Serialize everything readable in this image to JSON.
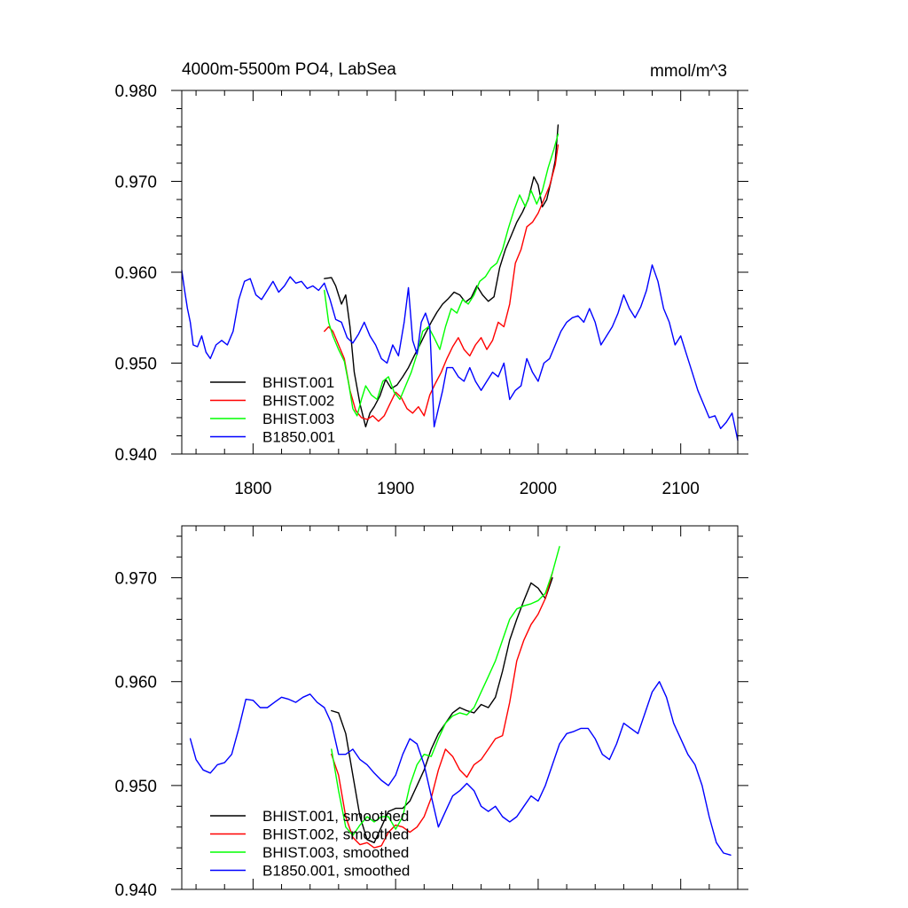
{
  "chart_data": [
    {
      "type": "line",
      "title": "4000m-5500m PO4, LabSea",
      "units": "mmol/m^3",
      "xlim": [
        1750,
        2140
      ],
      "ylim": [
        0.94,
        0.98
      ],
      "x_ticks": [
        1800,
        1900,
        2000,
        2100
      ],
      "x_tick_labels": [
        "1800",
        "1900",
        "2000",
        "2100"
      ],
      "y_ticks": [
        0.94,
        0.95,
        0.96,
        0.97,
        0.98
      ],
      "y_tick_labels": [
        "0.940",
        "0.950",
        "0.960",
        "0.970",
        "0.980"
      ],
      "legend_position": "bottom-left",
      "grid": false,
      "series": [
        {
          "name": "BHIST.001",
          "color": "#000000",
          "x": [
            1850,
            1855,
            1858,
            1862,
            1865,
            1868,
            1871,
            1875,
            1879,
            1882,
            1885,
            1889,
            1893,
            1897,
            1901,
            1905,
            1909,
            1913,
            1917,
            1921,
            1925,
            1929,
            1933,
            1937,
            1941,
            1945,
            1949,
            1953,
            1957,
            1961,
            1965,
            1969,
            1973,
            1977,
            1981,
            1985,
            1989,
            1993,
            1997,
            2000,
            2003,
            2006,
            2009,
            2012,
            2014
          ],
          "y": [
            0.9593,
            0.9594,
            0.9585,
            0.9565,
            0.9575,
            0.954,
            0.949,
            0.9455,
            0.943,
            0.9445,
            0.9452,
            0.9464,
            0.9482,
            0.9472,
            0.9476,
            0.9485,
            0.9495,
            0.9508,
            0.952,
            0.9533,
            0.9545,
            0.9556,
            0.9565,
            0.9571,
            0.9578,
            0.9575,
            0.9567,
            0.9572,
            0.9585,
            0.9575,
            0.9568,
            0.9573,
            0.9605,
            0.9625,
            0.964,
            0.9655,
            0.9666,
            0.968,
            0.9705,
            0.9696,
            0.9672,
            0.968,
            0.97,
            0.9723,
            0.9762
          ]
        },
        {
          "name": "BHIST.002",
          "color": "#ff0000",
          "x": [
            1850,
            1853,
            1856,
            1860,
            1864,
            1868,
            1872,
            1876,
            1880,
            1884,
            1888,
            1892,
            1896,
            1900,
            1904,
            1908,
            1912,
            1916,
            1920,
            1924,
            1928,
            1932,
            1936,
            1940,
            1944,
            1948,
            1952,
            1956,
            1960,
            1964,
            1968,
            1972,
            1976,
            1980,
            1984,
            1988,
            1992,
            1996,
            2000,
            2004,
            2008,
            2012,
            2014
          ],
          "y": [
            0.9535,
            0.954,
            0.9535,
            0.952,
            0.9505,
            0.947,
            0.9448,
            0.944,
            0.9438,
            0.9442,
            0.9436,
            0.9442,
            0.9455,
            0.9468,
            0.9462,
            0.945,
            0.9445,
            0.9452,
            0.9442,
            0.9465,
            0.9478,
            0.949,
            0.9505,
            0.9518,
            0.9528,
            0.9515,
            0.9508,
            0.952,
            0.9528,
            0.9515,
            0.9525,
            0.9545,
            0.954,
            0.9565,
            0.961,
            0.9625,
            0.965,
            0.9655,
            0.9665,
            0.968,
            0.9695,
            0.9718,
            0.974
          ]
        },
        {
          "name": "BHIST.003",
          "color": "#00ff00",
          "x": [
            1850,
            1853,
            1856,
            1860,
            1864,
            1867,
            1870,
            1873,
            1876,
            1879,
            1883,
            1887,
            1891,
            1895,
            1899,
            1903,
            1907,
            1911,
            1915,
            1919,
            1923,
            1927,
            1931,
            1935,
            1939,
            1943,
            1947,
            1951,
            1955,
            1959,
            1963,
            1967,
            1971,
            1975,
            1979,
            1983,
            1987,
            1991,
            1995,
            1999,
            2003,
            2007,
            2011,
            2014
          ],
          "y": [
            0.958,
            0.9545,
            0.953,
            0.9515,
            0.9502,
            0.9478,
            0.945,
            0.9442,
            0.946,
            0.9475,
            0.9465,
            0.946,
            0.948,
            0.9485,
            0.9468,
            0.946,
            0.9475,
            0.949,
            0.951,
            0.9535,
            0.954,
            0.9528,
            0.9515,
            0.954,
            0.956,
            0.9555,
            0.957,
            0.9565,
            0.9575,
            0.959,
            0.9595,
            0.9605,
            0.961,
            0.9625,
            0.9648,
            0.9668,
            0.9685,
            0.9672,
            0.969,
            0.9675,
            0.969,
            0.9715,
            0.9735,
            0.9752
          ]
        },
        {
          "name": "B1850.001",
          "color": "#0000ff",
          "x": [
            1750,
            1752,
            1754,
            1756,
            1758,
            1761,
            1764,
            1767,
            1770,
            1774,
            1778,
            1782,
            1786,
            1790,
            1794,
            1798,
            1802,
            1806,
            1810,
            1814,
            1818,
            1822,
            1826,
            1830,
            1834,
            1838,
            1842,
            1846,
            1850,
            1854,
            1858,
            1862,
            1866,
            1870,
            1874,
            1878,
            1882,
            1886,
            1890,
            1894,
            1898,
            1902,
            1906,
            1909,
            1912,
            1915,
            1918,
            1921,
            1924,
            1927,
            1930,
            1933,
            1936,
            1940,
            1944,
            1948,
            1952,
            1956,
            1960,
            1964,
            1968,
            1972,
            1976,
            1980,
            1984,
            1988,
            1992,
            1996,
            2000,
            2004,
            2008,
            2012,
            2016,
            2020,
            2024,
            2028,
            2032,
            2036,
            2040,
            2044,
            2048,
            2052,
            2056,
            2060,
            2064,
            2068,
            2072,
            2076,
            2080,
            2084,
            2088,
            2092,
            2096,
            2100,
            2104,
            2108,
            2112,
            2116,
            2120,
            2124,
            2128,
            2132,
            2136,
            2140
          ],
          "y": [
            0.9602,
            0.958,
            0.956,
            0.9545,
            0.952,
            0.9518,
            0.953,
            0.9512,
            0.9505,
            0.952,
            0.9525,
            0.952,
            0.9535,
            0.957,
            0.959,
            0.9593,
            0.9575,
            0.957,
            0.958,
            0.959,
            0.9578,
            0.9585,
            0.9595,
            0.9588,
            0.959,
            0.9582,
            0.9585,
            0.958,
            0.9588,
            0.957,
            0.9548,
            0.9545,
            0.9528,
            0.9522,
            0.9532,
            0.9545,
            0.953,
            0.952,
            0.9505,
            0.95,
            0.952,
            0.9508,
            0.9545,
            0.9583,
            0.9525,
            0.951,
            0.9545,
            0.9555,
            0.954,
            0.943,
            0.945,
            0.947,
            0.9495,
            0.9495,
            0.9485,
            0.948,
            0.9495,
            0.948,
            0.947,
            0.948,
            0.949,
            0.9485,
            0.95,
            0.946,
            0.947,
            0.9475,
            0.9505,
            0.949,
            0.948,
            0.95,
            0.9505,
            0.952,
            0.9535,
            0.9545,
            0.955,
            0.9552,
            0.9545,
            0.956,
            0.9545,
            0.952,
            0.953,
            0.954,
            0.9555,
            0.9575,
            0.956,
            0.955,
            0.9562,
            0.958,
            0.9608,
            0.959,
            0.956,
            0.9545,
            0.952,
            0.953,
            0.951,
            0.949,
            0.947,
            0.9455,
            0.944,
            0.9442,
            0.9428,
            0.9435,
            0.9445,
            0.9415
          ]
        }
      ],
      "legend": [
        "BHIST.001",
        "BHIST.002",
        "BHIST.003",
        "B1850.001"
      ]
    },
    {
      "type": "line",
      "title": "",
      "xlim": [
        1750,
        2140
      ],
      "ylim": [
        0.94,
        0.975
      ],
      "x_ticks": [
        1800,
        1900,
        2000,
        2100
      ],
      "x_tick_labels": [],
      "y_ticks": [
        0.94,
        0.95,
        0.96,
        0.97
      ],
      "y_tick_labels": [
        "0.940",
        "0.950",
        "0.960",
        "0.970"
      ],
      "legend_position": "bottom-left",
      "grid": false,
      "series": [
        {
          "name": "BHIST.001, smoothed",
          "color": "#000000",
          "x": [
            1855,
            1860,
            1865,
            1870,
            1875,
            1880,
            1885,
            1890,
            1895,
            1900,
            1905,
            1910,
            1915,
            1920,
            1925,
            1930,
            1935,
            1940,
            1945,
            1950,
            1955,
            1960,
            1965,
            1970,
            1975,
            1980,
            1985,
            1990,
            1995,
            2000,
            2005,
            2010
          ],
          "y": [
            0.9572,
            0.957,
            0.955,
            0.951,
            0.947,
            0.9448,
            0.9445,
            0.946,
            0.9475,
            0.9478,
            0.9478,
            0.9485,
            0.95,
            0.9515,
            0.9535,
            0.955,
            0.956,
            0.957,
            0.9575,
            0.9572,
            0.957,
            0.9578,
            0.9575,
            0.9585,
            0.961,
            0.964,
            0.966,
            0.9678,
            0.9695,
            0.969,
            0.968,
            0.97
          ]
        },
        {
          "name": "BHIST.002, smoothed",
          "color": "#ff0000",
          "x": [
            1855,
            1860,
            1865,
            1870,
            1875,
            1880,
            1885,
            1890,
            1895,
            1900,
            1905,
            1910,
            1915,
            1920,
            1925,
            1930,
            1935,
            1940,
            1945,
            1950,
            1955,
            1960,
            1965,
            1970,
            1975,
            1980,
            1985,
            1990,
            1995,
            2000,
            2005,
            2010
          ],
          "y": [
            0.953,
            0.951,
            0.947,
            0.945,
            0.9443,
            0.9445,
            0.944,
            0.9442,
            0.9455,
            0.9462,
            0.946,
            0.9455,
            0.946,
            0.947,
            0.9488,
            0.9515,
            0.9535,
            0.9528,
            0.9515,
            0.9508,
            0.952,
            0.9525,
            0.9535,
            0.9545,
            0.9548,
            0.958,
            0.962,
            0.964,
            0.9655,
            0.9665,
            0.968,
            0.9705
          ]
        },
        {
          "name": "BHIST.003, smoothed",
          "color": "#00ff00",
          "x": [
            1855,
            1860,
            1865,
            1870,
            1875,
            1880,
            1885,
            1890,
            1895,
            1900,
            1905,
            1910,
            1915,
            1920,
            1925,
            1930,
            1935,
            1940,
            1945,
            1950,
            1955,
            1960,
            1965,
            1970,
            1975,
            1980,
            1985,
            1990,
            1995,
            2000,
            2005,
            2010,
            2015
          ],
          "y": [
            0.9535,
            0.9495,
            0.946,
            0.9452,
            0.9462,
            0.947,
            0.9465,
            0.947,
            0.947,
            0.9458,
            0.947,
            0.95,
            0.952,
            0.953,
            0.9528,
            0.9545,
            0.956,
            0.9567,
            0.957,
            0.9568,
            0.9575,
            0.959,
            0.9605,
            0.962,
            0.964,
            0.966,
            0.967,
            0.9673,
            0.9675,
            0.9678,
            0.9685,
            0.9705,
            0.973
          ]
        },
        {
          "name": "B1850.001, smoothed",
          "color": "#0000ff",
          "x": [
            1756,
            1760,
            1765,
            1770,
            1775,
            1780,
            1785,
            1790,
            1795,
            1800,
            1805,
            1810,
            1815,
            1820,
            1825,
            1830,
            1835,
            1840,
            1845,
            1850,
            1855,
            1860,
            1865,
            1870,
            1875,
            1880,
            1885,
            1890,
            1895,
            1900,
            1905,
            1910,
            1915,
            1920,
            1925,
            1930,
            1935,
            1940,
            1945,
            1950,
            1955,
            1960,
            1965,
            1970,
            1975,
            1980,
            1985,
            1990,
            1995,
            2000,
            2005,
            2010,
            2015,
            2020,
            2025,
            2030,
            2035,
            2040,
            2045,
            2050,
            2055,
            2060,
            2065,
            2070,
            2075,
            2080,
            2085,
            2090,
            2095,
            2100,
            2105,
            2110,
            2115,
            2120,
            2125,
            2130,
            2135
          ],
          "y": [
            0.9545,
            0.9525,
            0.9515,
            0.9512,
            0.952,
            0.9522,
            0.953,
            0.9555,
            0.9583,
            0.9582,
            0.9575,
            0.9575,
            0.958,
            0.9585,
            0.9583,
            0.958,
            0.9585,
            0.9588,
            0.958,
            0.9575,
            0.956,
            0.953,
            0.953,
            0.9535,
            0.9525,
            0.952,
            0.9512,
            0.9505,
            0.95,
            0.951,
            0.953,
            0.9545,
            0.954,
            0.952,
            0.949,
            0.946,
            0.9475,
            0.949,
            0.9495,
            0.9502,
            0.9495,
            0.948,
            0.9475,
            0.948,
            0.947,
            0.9465,
            0.947,
            0.948,
            0.949,
            0.9485,
            0.95,
            0.952,
            0.954,
            0.955,
            0.9552,
            0.9555,
            0.9555,
            0.9545,
            0.953,
            0.9525,
            0.954,
            0.956,
            0.9555,
            0.955,
            0.957,
            0.959,
            0.96,
            0.9585,
            0.956,
            0.9545,
            0.953,
            0.952,
            0.95,
            0.947,
            0.9445,
            0.9435,
            0.9433
          ]
        }
      ],
      "legend": [
        "BHIST.001, smoothed",
        "BHIST.002, smoothed",
        "BHIST.003, smoothed",
        "B1850.001, smoothed"
      ]
    }
  ]
}
